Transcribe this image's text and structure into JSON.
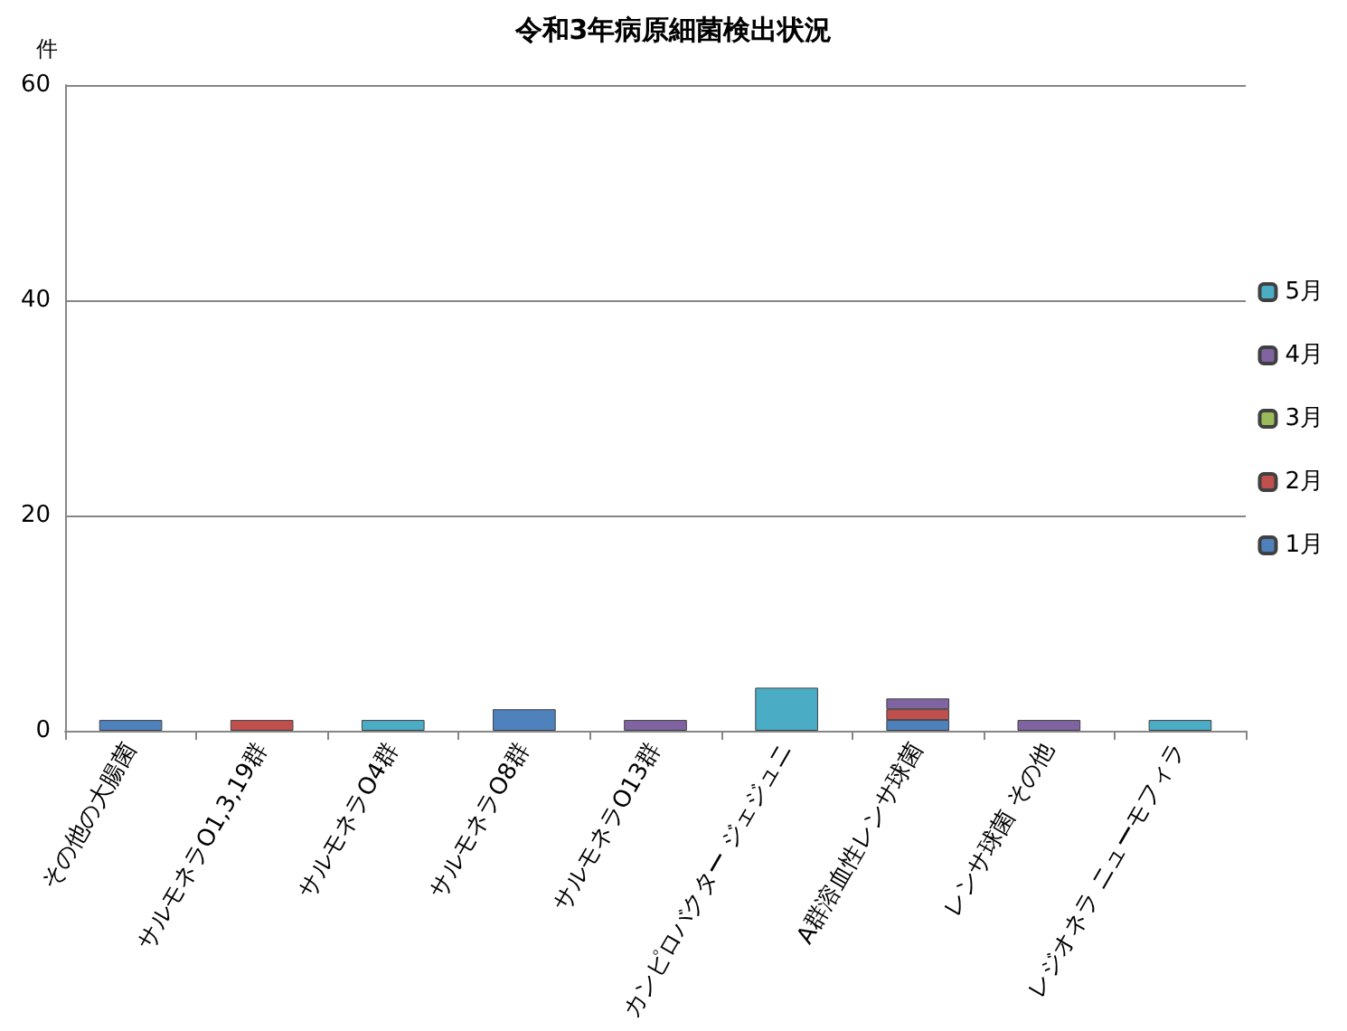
{
  "chart_data": {
    "type": "bar",
    "title": "令和3年病原細菌検出状況",
    "ylabel": "件",
    "categories": [
      "その他の大腸菌",
      "サルモネラO1,3,19群",
      "サルモネラO4群",
      "サルモネラO8群",
      "サルモネラO13群",
      "カンピロバクター ジェジュニ",
      "A群溶血性レンサ球菌",
      "レンサ球菌 その他",
      "レジオネラ ニューモフィラ"
    ],
    "series": [
      {
        "name": "1月",
        "color": "#4f81bd",
        "values": [
          1,
          null,
          null,
          2,
          null,
          null,
          1,
          null,
          null
        ]
      },
      {
        "name": "2月",
        "color": "#c0504d",
        "values": [
          null,
          1,
          null,
          null,
          null,
          null,
          1,
          null,
          null
        ]
      },
      {
        "name": "3月",
        "color": "#9bbb59",
        "values": [
          null,
          null,
          null,
          null,
          null,
          null,
          null,
          null,
          null
        ]
      },
      {
        "name": "4月",
        "color": "#8064a2",
        "values": [
          null,
          null,
          null,
          null,
          1,
          null,
          1,
          1,
          null
        ]
      },
      {
        "name": "5月",
        "color": "#4bacc6",
        "values": [
          null,
          null,
          1,
          null,
          null,
          4,
          null,
          null,
          1
        ]
      }
    ],
    "stacked": true,
    "ylim": [
      0,
      60
    ],
    "yticks": [
      0,
      20,
      40,
      60
    ],
    "grid": "y",
    "legend": "right"
  }
}
